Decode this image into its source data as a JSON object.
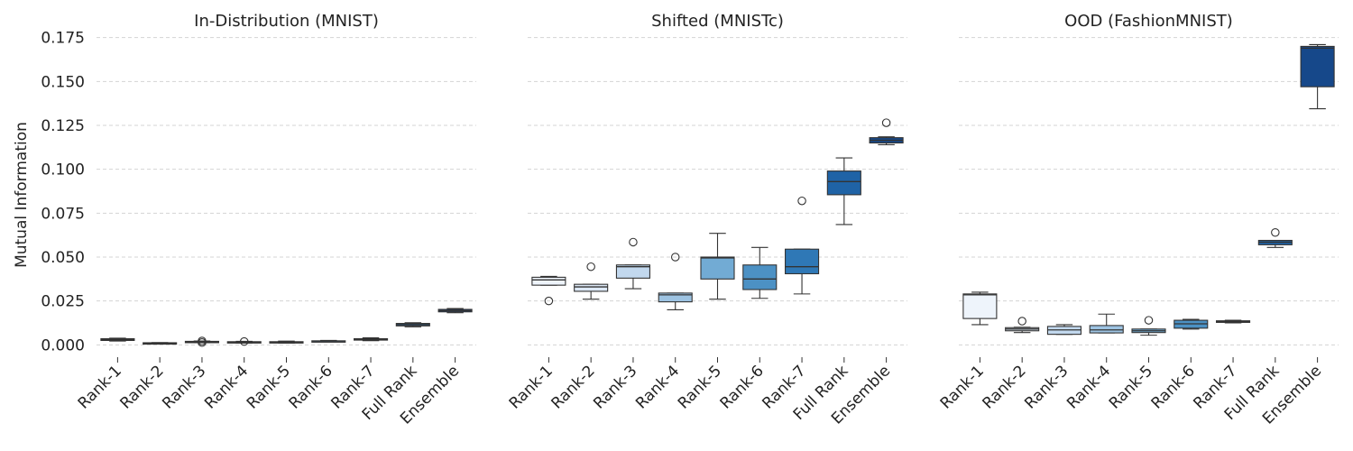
{
  "chart_data": {
    "type": "box",
    "ylabel": "Mutual Information",
    "ylim": [
      -0.006,
      0.181
    ],
    "yticks": [
      "0.000",
      "0.025",
      "0.050",
      "0.075",
      "0.100",
      "0.125",
      "0.150",
      "0.175"
    ],
    "yticks_values": [
      0,
      0.025,
      0.05,
      0.075,
      0.1,
      0.125,
      0.15,
      0.175
    ],
    "grid": "y-dashed",
    "categories": [
      "Rank-1",
      "Rank-2",
      "Rank-3",
      "Rank-4",
      "Rank-5",
      "Rank-6",
      "Rank-7",
      "Full Rank",
      "Ensemble"
    ],
    "colors": [
      "#eef4fb",
      "#dce8f5",
      "#c2d8ee",
      "#9dc3e2",
      "#72abd4",
      "#4c91c4",
      "#2f78b6",
      "#1f63a6",
      "#16488a"
    ],
    "panels": [
      {
        "title": "In-Distribution (MNIST)",
        "boxes": [
          {
            "q1": 0.0025,
            "med": 0.003,
            "q3": 0.0035,
            "wlo": 0.0022,
            "whi": 0.0038,
            "fliers": []
          },
          {
            "q1": 0.0009,
            "med": 0.001,
            "q3": 0.0012,
            "wlo": 0.0008,
            "whi": 0.0013,
            "fliers": []
          },
          {
            "q1": 0.0014,
            "med": 0.0017,
            "q3": 0.002,
            "wlo": 0.0012,
            "whi": 0.0022,
            "fliers": [
              0.0013,
              0.0022
            ]
          },
          {
            "q1": 0.0013,
            "med": 0.0015,
            "q3": 0.0018,
            "wlo": 0.0011,
            "whi": 0.002,
            "fliers": [
              0.0019
            ]
          },
          {
            "q1": 0.0012,
            "med": 0.0015,
            "q3": 0.0018,
            "wlo": 0.001,
            "whi": 0.0021,
            "fliers": []
          },
          {
            "q1": 0.0019,
            "med": 0.0021,
            "q3": 0.0023,
            "wlo": 0.0018,
            "whi": 0.0025,
            "fliers": []
          },
          {
            "q1": 0.0027,
            "med": 0.0031,
            "q3": 0.0035,
            "wlo": 0.0024,
            "whi": 0.004,
            "fliers": []
          },
          {
            "q1": 0.0108,
            "med": 0.0115,
            "q3": 0.0122,
            "wlo": 0.0103,
            "whi": 0.0126,
            "fliers": []
          },
          {
            "q1": 0.0188,
            "med": 0.0195,
            "q3": 0.0202,
            "wlo": 0.0183,
            "whi": 0.0207,
            "fliers": []
          }
        ]
      },
      {
        "title": "Shifted (MNISTc)",
        "boxes": [
          {
            "q1": 0.034,
            "med": 0.037,
            "q3": 0.0385,
            "wlo": 0.034,
            "whi": 0.039,
            "fliers": [
              0.025
            ]
          },
          {
            "q1": 0.0305,
            "med": 0.033,
            "q3": 0.0345,
            "wlo": 0.026,
            "whi": 0.0345,
            "fliers": [
              0.0445
            ]
          },
          {
            "q1": 0.038,
            "med": 0.0445,
            "q3": 0.0455,
            "wlo": 0.032,
            "whi": 0.0455,
            "fliers": [
              0.0585
            ]
          },
          {
            "q1": 0.0245,
            "med": 0.0285,
            "q3": 0.0295,
            "wlo": 0.02,
            "whi": 0.0295,
            "fliers": [
              0.05
            ]
          },
          {
            "q1": 0.0375,
            "med": 0.0495,
            "q3": 0.05,
            "wlo": 0.026,
            "whi": 0.0635,
            "fliers": []
          },
          {
            "q1": 0.0315,
            "med": 0.0375,
            "q3": 0.0455,
            "wlo": 0.0265,
            "whi": 0.0555,
            "fliers": []
          },
          {
            "q1": 0.0405,
            "med": 0.0445,
            "q3": 0.0545,
            "wlo": 0.029,
            "whi": 0.0545,
            "fliers": [
              0.082
            ]
          },
          {
            "q1": 0.0855,
            "med": 0.093,
            "q3": 0.099,
            "wlo": 0.0685,
            "whi": 0.1065,
            "fliers": []
          },
          {
            "q1": 0.115,
            "med": 0.1165,
            "q3": 0.118,
            "wlo": 0.114,
            "whi": 0.1185,
            "fliers": [
              0.1265
            ]
          }
        ]
      },
      {
        "title": "OOD (FashionMNIST)",
        "boxes": [
          {
            "q1": 0.015,
            "med": 0.0285,
            "q3": 0.029,
            "wlo": 0.0115,
            "whi": 0.03,
            "fliers": []
          },
          {
            "q1": 0.008,
            "med": 0.009,
            "q3": 0.0098,
            "wlo": 0.007,
            "whi": 0.01,
            "fliers": [
              0.0135
            ]
          },
          {
            "q1": 0.006,
            "med": 0.0085,
            "q3": 0.0105,
            "wlo": 0.006,
            "whi": 0.0115,
            "fliers": []
          },
          {
            "q1": 0.0068,
            "med": 0.0085,
            "q3": 0.011,
            "wlo": 0.0068,
            "whi": 0.0175,
            "fliers": []
          },
          {
            "q1": 0.007,
            "med": 0.008,
            "q3": 0.009,
            "wlo": 0.0055,
            "whi": 0.009,
            "fliers": [
              0.014
            ]
          },
          {
            "q1": 0.0095,
            "med": 0.012,
            "q3": 0.014,
            "wlo": 0.009,
            "whi": 0.0145,
            "fliers": []
          },
          {
            "q1": 0.0128,
            "med": 0.0132,
            "q3": 0.0137,
            "wlo": 0.0125,
            "whi": 0.014,
            "fliers": []
          },
          {
            "q1": 0.057,
            "med": 0.0585,
            "q3": 0.0595,
            "wlo": 0.0555,
            "whi": 0.0595,
            "fliers": [
              0.064
            ]
          },
          {
            "q1": 0.147,
            "med": 0.169,
            "q3": 0.17,
            "wlo": 0.1345,
            "whi": 0.171,
            "fliers": []
          }
        ]
      }
    ]
  }
}
